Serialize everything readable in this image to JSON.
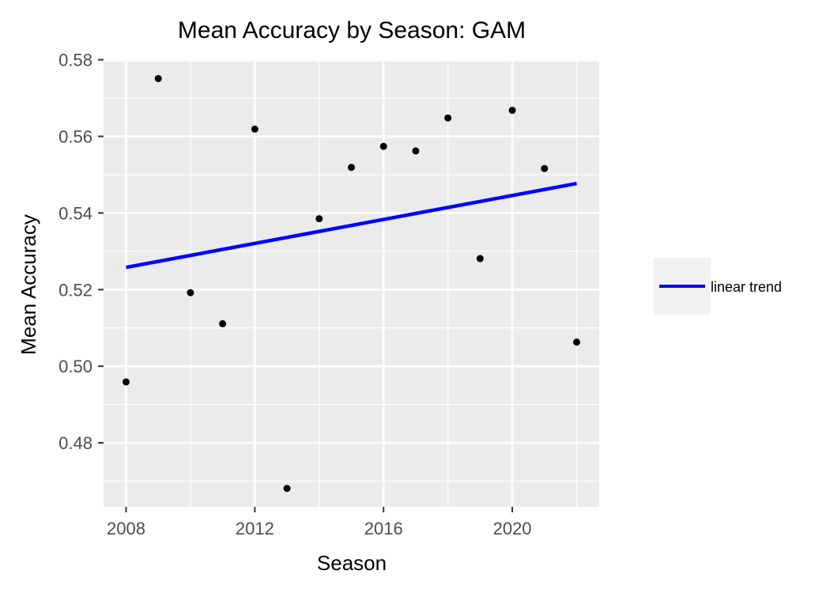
{
  "chart_data": {
    "type": "scatter",
    "title": "Mean Accuracy by Season: GAM",
    "xlabel": "Season",
    "ylabel": "Mean Accuracy",
    "xlim": [
      2007.3,
      2022.7
    ],
    "ylim": [
      0.4633,
      0.5795
    ],
    "x_ticks": [
      2008,
      2012,
      2016,
      2020
    ],
    "y_ticks": [
      0.48,
      0.5,
      0.52,
      0.54,
      0.56,
      0.58
    ],
    "y_tick_labels": [
      "0.48",
      "0.50",
      "0.52",
      "0.54",
      "0.56",
      "0.58"
    ],
    "grid": true,
    "points": {
      "x": [
        2008,
        2009,
        2010,
        2011,
        2012,
        2013,
        2014,
        2015,
        2016,
        2017,
        2018,
        2019,
        2020,
        2021,
        2022
      ],
      "y": [
        0.4959,
        0.5751,
        0.5192,
        0.5111,
        0.5619,
        0.4681,
        0.5385,
        0.5519,
        0.5574,
        0.5562,
        0.5648,
        0.5281,
        0.5668,
        0.5516,
        0.5063
      ],
      "color": "#000000"
    },
    "trend": {
      "name": "linear trend",
      "x": [
        2008,
        2022
      ],
      "y": [
        0.5258,
        0.5477
      ],
      "color": "#0000ff"
    },
    "legend": {
      "position": "right",
      "entries": [
        {
          "label": "linear trend",
          "color": "#0000ff"
        }
      ]
    },
    "panel_background": "#ebebeb",
    "grid_color": "#ffffff"
  }
}
